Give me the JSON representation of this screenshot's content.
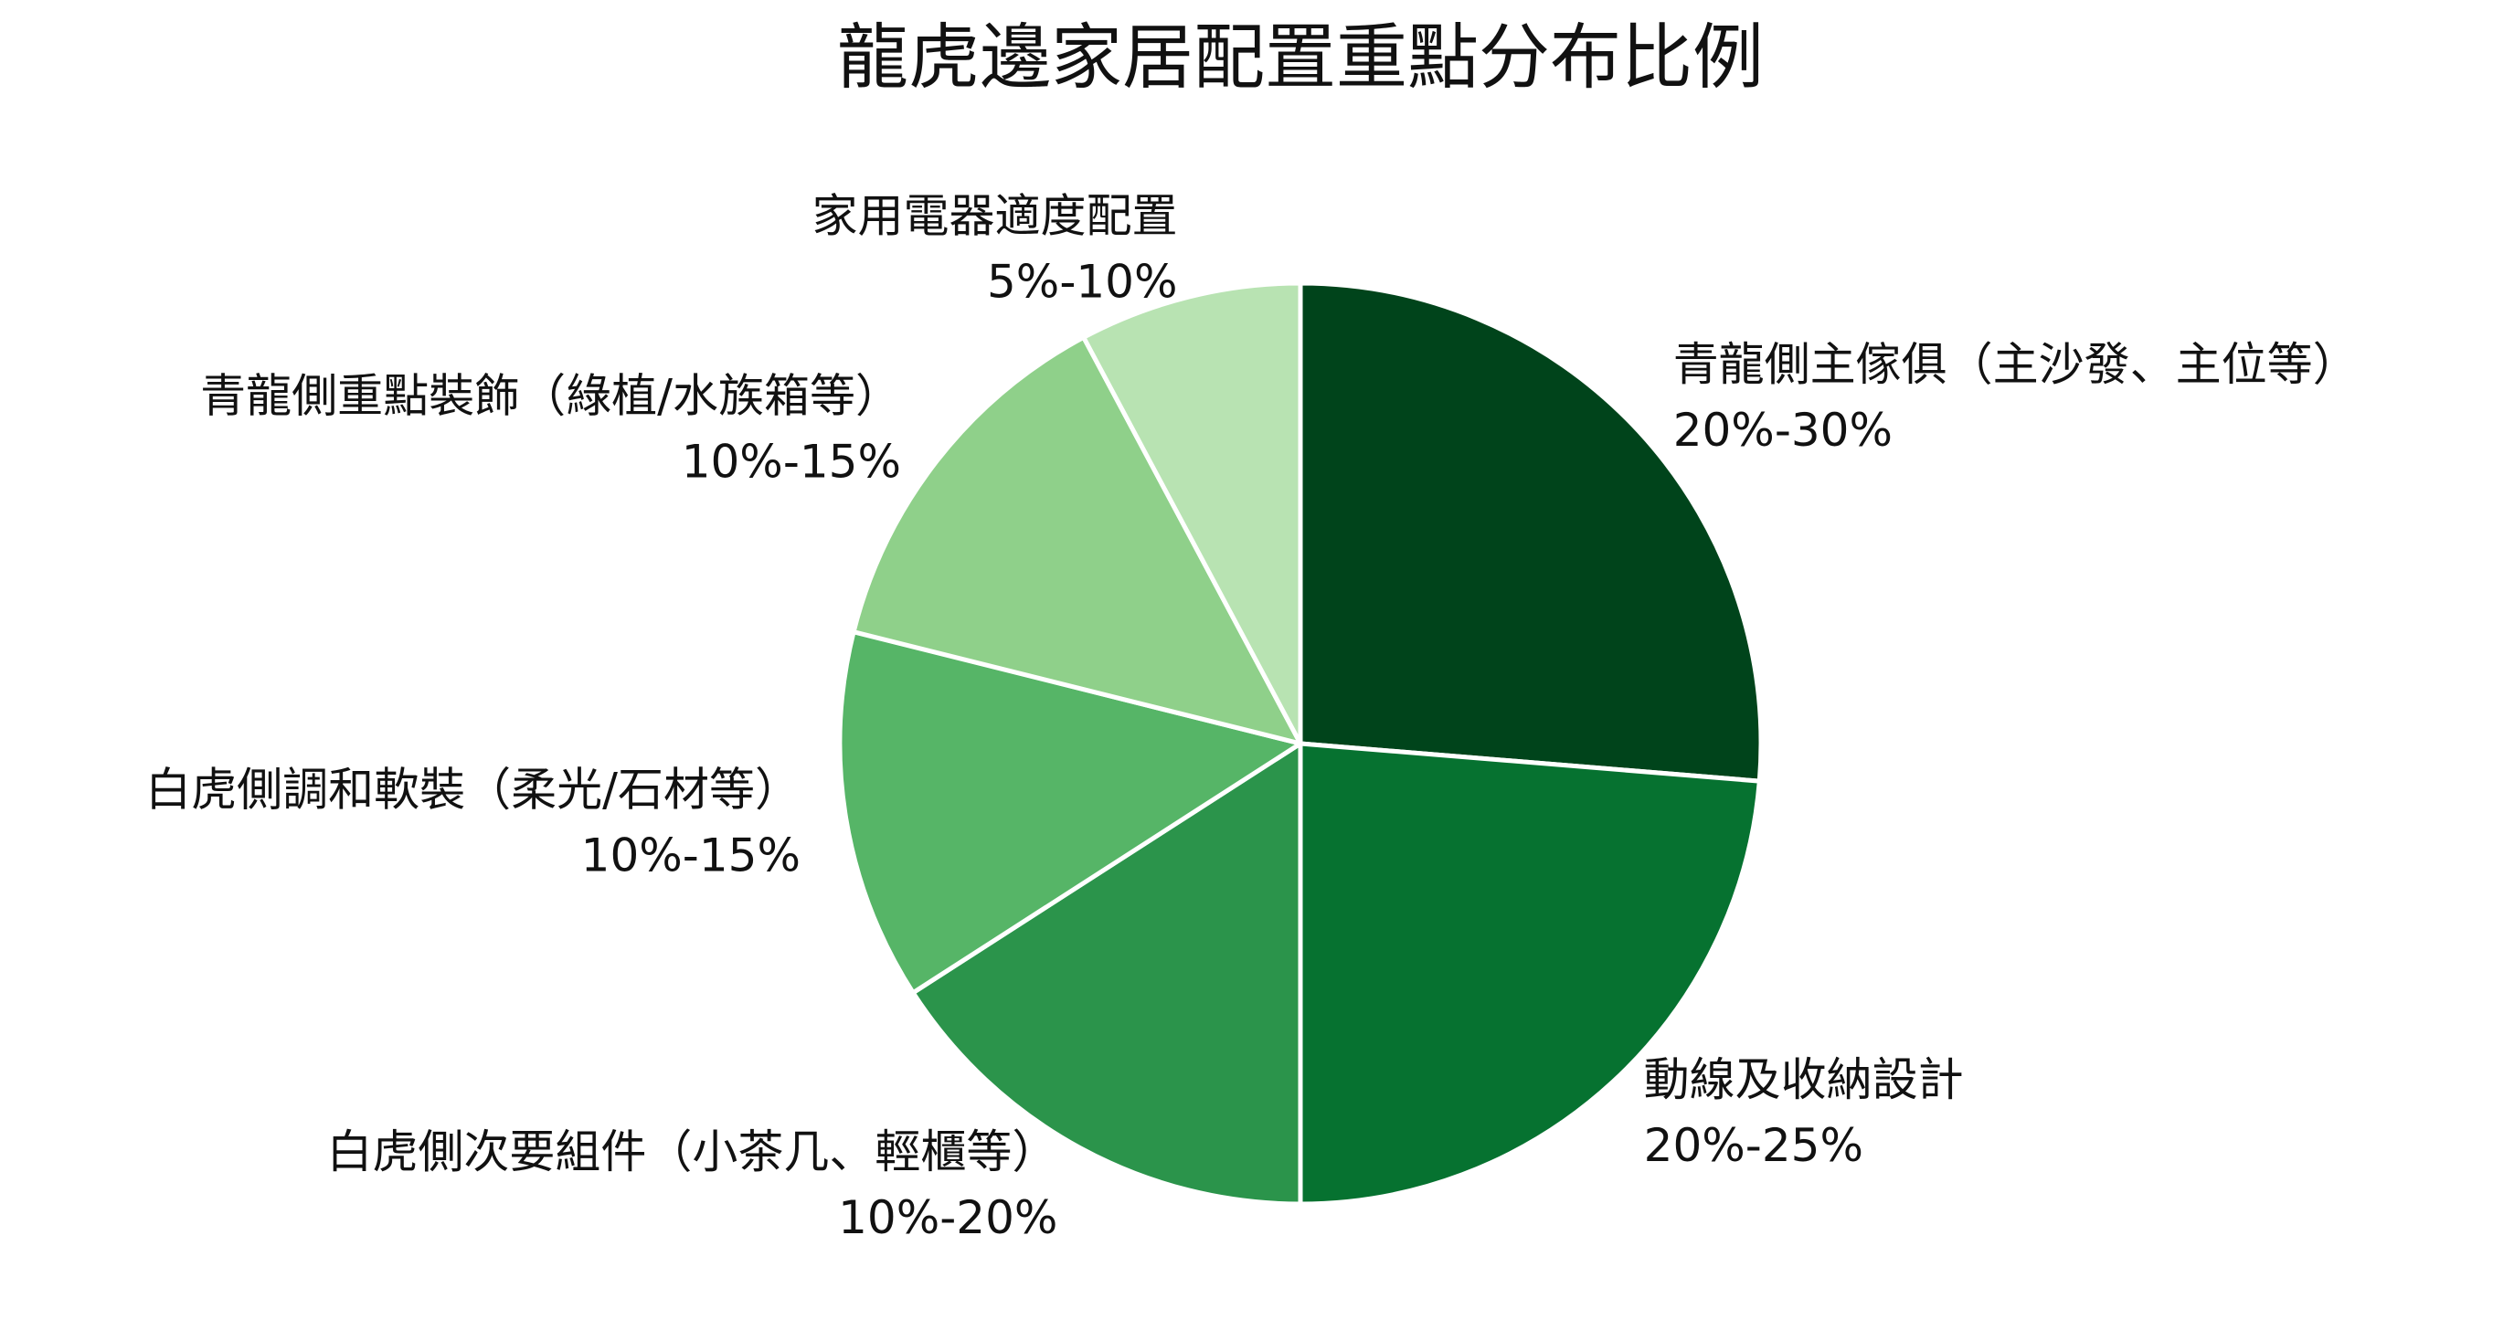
{
  "chart_data": {
    "type": "pie",
    "title": "龍虎邊家居配置重點分布比例",
    "categories": [
      "青龍側主傢俱（主沙發、主位等）",
      "動線及收納設計",
      "白虎側次要組件（小茶几、輕櫃等）",
      "白虎側調和軟裝（柔光/石材等）",
      "青龍側重點裝飾（綠植/水族箱等）",
      "家用電器適度配置"
    ],
    "range_labels": [
      "20%-30%",
      "20%-25%",
      "10%-20%",
      "10%-15%",
      "10%-15%",
      "5%-10%"
    ],
    "values": [
      26.3,
      23.7,
      15.9,
      13.0,
      13.3,
      7.8
    ],
    "colors": [
      "#00441b",
      "#067230",
      "#2b944b",
      "#56b567",
      "#8fd08a",
      "#b8e3b2"
    ]
  }
}
